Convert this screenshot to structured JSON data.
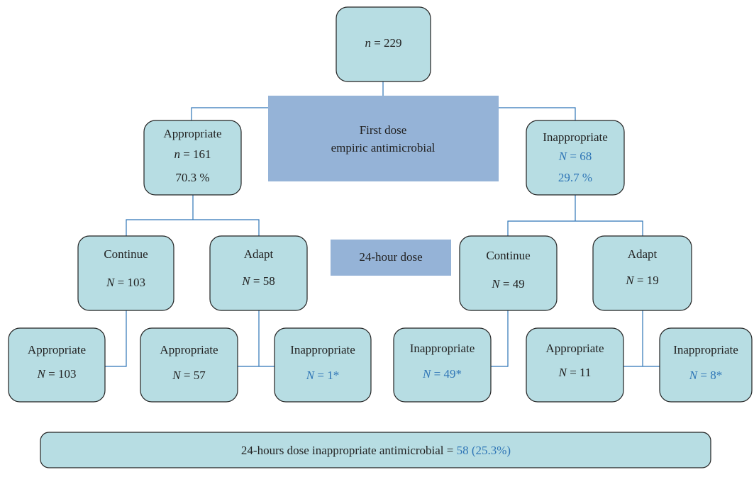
{
  "root": {
    "lines": [
      {
        "var": "n",
        "text": "= 229"
      }
    ]
  },
  "first_dose": {
    "lines": [
      "First dose",
      "empiric antimicrobial"
    ]
  },
  "dose_24h": {
    "label": "24-hour dose"
  },
  "level1": [
    {
      "lines": [
        "Appropriate",
        {
          "var": "n",
          "text": "= 161"
        },
        "70.3 %"
      ]
    },
    {
      "lines": [
        "Inappropriate",
        {
          "var": "N",
          "text": "= 68"
        },
        "29.7 %"
      ]
    }
  ],
  "level2": [
    {
      "lines": [
        "Continue",
        {
          "var": "N",
          "text": "= 103"
        }
      ]
    },
    {
      "lines": [
        "Adapt",
        {
          "var": "N",
          "text": "= 58"
        }
      ]
    },
    {
      "lines": [
        "Continue",
        {
          "var": "N",
          "text": "= 49"
        }
      ]
    },
    {
      "lines": [
        "Adapt",
        {
          "var": "N",
          "text": "= 19"
        }
      ]
    }
  ],
  "level3": [
    {
      "lines": [
        "Appropriate",
        {
          "var": "N",
          "text": "= 103"
        }
      ]
    },
    {
      "lines": [
        "Appropriate",
        {
          "var": "N",
          "text": "= 57"
        }
      ]
    },
    {
      "lines": [
        "Inappropriate",
        {
          "var": "N",
          "text": "= 1*"
        }
      ]
    },
    {
      "lines": [
        "Inappropriate",
        {
          "var": "N",
          "text": "= 49*"
        }
      ]
    },
    {
      "lines": [
        "Appropriate",
        {
          "var": "N",
          "text": "= 11"
        }
      ]
    },
    {
      "lines": [
        "Inappropriate",
        {
          "var": "N",
          "text": "= 8*"
        }
      ]
    }
  ],
  "summary": {
    "text": "24-hours dose inappropriate antimicrobial =",
    "value": "58 (25.3%)"
  }
}
